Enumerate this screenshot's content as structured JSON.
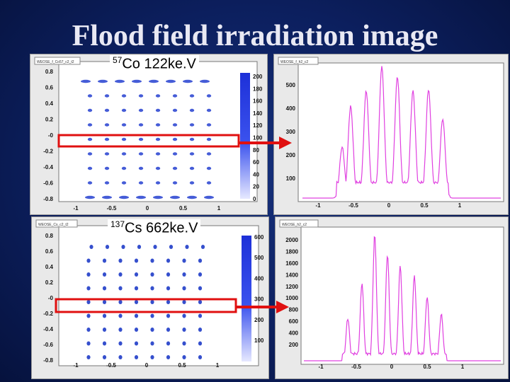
{
  "slide": {
    "title": "Flood field irradiation image",
    "colors": {
      "background": "#0c1f5e",
      "spot": "#1f3cc8",
      "histogram": "#e040e0",
      "highlight": "#e01010",
      "arrow": "#e01010"
    }
  },
  "panels": {
    "co57": {
      "isotope_mass": "57",
      "label": "Co 122ke.V",
      "map_title": "WEOSE_f_Co57_c2_t2",
      "hist_title": "WEOSE_f_h2_c2",
      "map_y_ticks": [
        "0.8",
        "0.6",
        "0.4",
        "0.2",
        "-0",
        "-0.2",
        "-0.4",
        "-0.6",
        "-0.8"
      ],
      "map_x_ticks": [
        "-1",
        "-0.5",
        "0",
        "0.5",
        "1"
      ],
      "color_scale_ticks": [
        "200",
        "180",
        "160",
        "140",
        "120",
        "100",
        "80",
        "60",
        "40",
        "20",
        "0"
      ],
      "hist_y_ticks": [
        "500",
        "400",
        "300",
        "200",
        "100"
      ],
      "hist_x_ticks": [
        "-1",
        "-0.5",
        "0",
        "0.5",
        "1"
      ]
    },
    "cs137": {
      "isotope_mass": "137",
      "label": "Cs 662ke.V",
      "map_title": "WEOSE_Cs_c2_t2",
      "hist_title": "WEOSE_h2_c2",
      "map_y_ticks": [
        "0.8",
        "0.6",
        "0.4",
        "0.2",
        "-0",
        "-0.2",
        "-0.4",
        "-0.6",
        "-0.8"
      ],
      "map_x_ticks": [
        "-1",
        "-0.5",
        "0",
        "0.5",
        "1"
      ],
      "color_scale_ticks": [
        "600",
        "500",
        "400",
        "300",
        "200",
        "100"
      ],
      "hist_y_ticks": [
        "2000",
        "1800",
        "1600",
        "1400",
        "1200",
        "1000",
        "800",
        "600",
        "400",
        "200"
      ],
      "hist_x_ticks": [
        "-1",
        "-0.5",
        "0",
        "0.5",
        "1"
      ]
    }
  }
}
